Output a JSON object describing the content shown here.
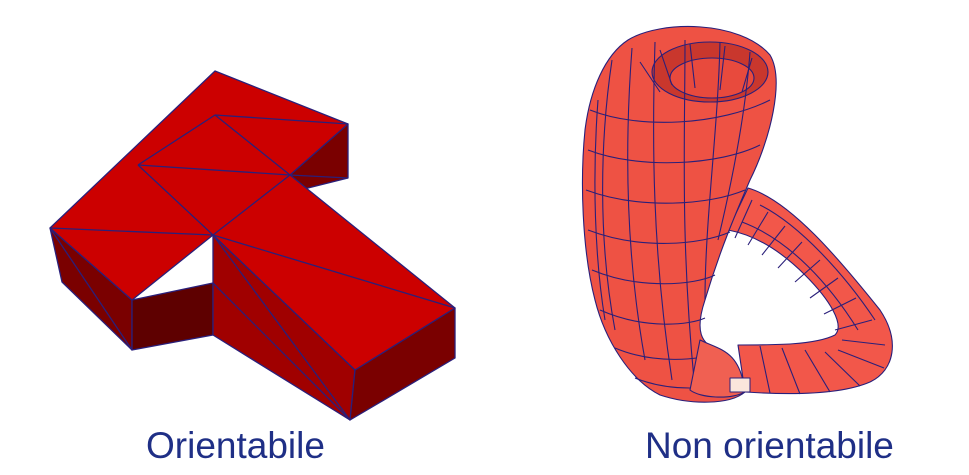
{
  "figures": [
    {
      "caption": "Orientabile"
    },
    {
      "caption": "Non orientabile"
    }
  ],
  "colors": {
    "t_top": "#cc0000",
    "t_side_dark": "#7a0000",
    "t_side_mid": "#a80000",
    "klein_fill": "#f2574a",
    "klein_dark": "#d8443a",
    "klein_light": "#fb7a6b",
    "mesh_line": "#2a1f7a",
    "caption_text": "#1f2f86"
  }
}
